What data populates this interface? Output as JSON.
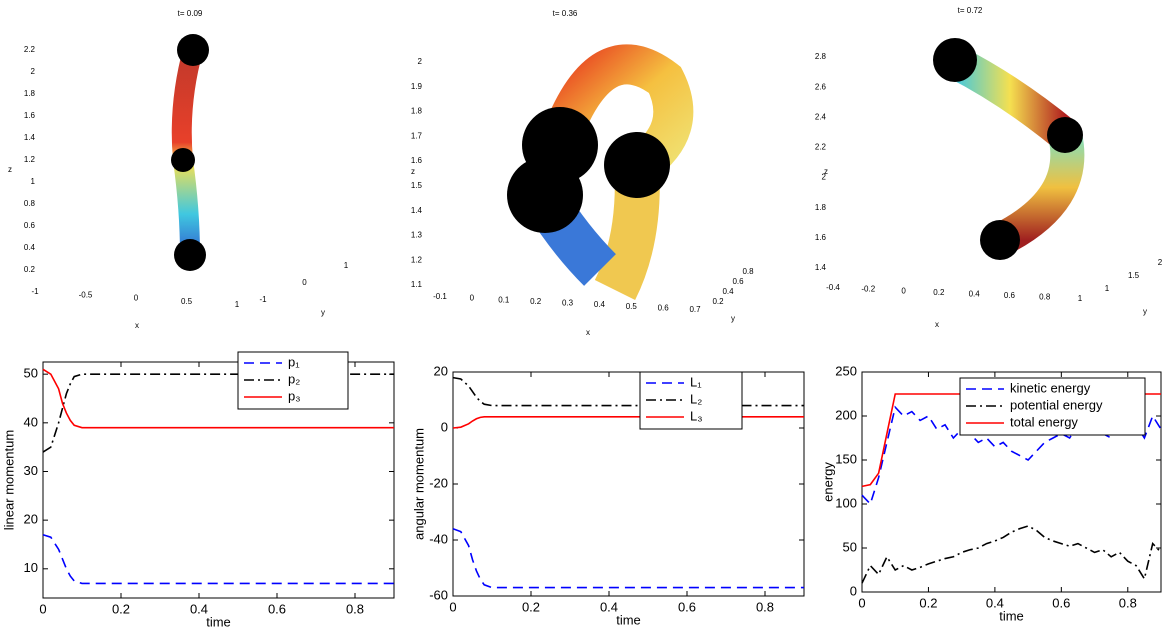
{
  "chart_data": [
    {
      "type": "surface3d",
      "title": "t= 0.09",
      "xlabel": "x",
      "ylabel": "y",
      "zlabel": "z",
      "xlim": [
        -1,
        1
      ],
      "xticks": [
        -1,
        -0.5,
        0,
        0.5,
        1
      ],
      "ylim": [
        -1,
        1
      ],
      "yticks": [
        -1,
        0,
        1
      ],
      "zlim": [
        0.2,
        2.2
      ],
      "zticks": [
        0.2,
        0.4,
        0.6,
        0.8,
        1,
        1.2,
        1.4,
        1.6,
        1.8,
        2,
        2.2
      ]
    },
    {
      "type": "surface3d",
      "title": "t= 0.36",
      "xlabel": "x",
      "ylabel": "y",
      "zlabel": "z",
      "xlim": [
        -0.1,
        0.7
      ],
      "xticks": [
        -0.1,
        0,
        0.1,
        0.2,
        0.3,
        0.4,
        0.5,
        0.6,
        0.7
      ],
      "ylim": [
        0.2,
        0.8
      ],
      "yticks": [
        0.2,
        0.4,
        0.6,
        0.8
      ],
      "zlim": [
        1.1,
        2
      ],
      "zticks": [
        1.1,
        1.2,
        1.3,
        1.4,
        1.5,
        1.6,
        1.7,
        1.8,
        1.9,
        2
      ]
    },
    {
      "type": "surface3d",
      "title": "t= 0.72",
      "xlabel": "x",
      "ylabel": "y",
      "zlabel": "z",
      "xlim": [
        -0.4,
        1
      ],
      "xticks": [
        -0.4,
        -0.2,
        0,
        0.2,
        0.4,
        0.6,
        0.8,
        1
      ],
      "ylim": [
        1,
        2
      ],
      "yticks": [
        1,
        1.5,
        2
      ],
      "zlim": [
        1.4,
        2.8
      ],
      "zticks": [
        1.4,
        1.6,
        1.8,
        2,
        2.2,
        2.4,
        2.6,
        2.8
      ]
    },
    {
      "type": "line",
      "xlabel": "time",
      "ylabel": "linear momentum",
      "legend": "upper right",
      "xlim": [
        0,
        0.9
      ],
      "xticks": [
        0,
        0.2,
        0.4,
        0.6,
        0.8
      ],
      "ylim": [
        4,
        52.5
      ],
      "yticks": [
        10,
        20,
        30,
        40,
        50
      ],
      "x": [
        0,
        0.02,
        0.04,
        0.05,
        0.06,
        0.07,
        0.08,
        0.1,
        0.2,
        0.4,
        0.6,
        0.8,
        0.9
      ],
      "series": [
        {
          "name": "p₁",
          "color": "#0000ff",
          "line_style": "dashed",
          "values": [
            17,
            16.5,
            14,
            12,
            10,
            8.5,
            7.5,
            7,
            7,
            7,
            7,
            7,
            7
          ]
        },
        {
          "name": "p₂",
          "color": "#000000",
          "line_style": "dashdot",
          "values": [
            34,
            35,
            40,
            43,
            46,
            48,
            49.5,
            50,
            50,
            50,
            50,
            50,
            50
          ]
        },
        {
          "name": "p₃",
          "color": "#ff0000",
          "line_style": "solid",
          "values": [
            51,
            50,
            47,
            44,
            42,
            40.5,
            39.5,
            39,
            39,
            39,
            39,
            39,
            39
          ]
        }
      ]
    },
    {
      "type": "line",
      "xlabel": "time",
      "ylabel": "angular momentum",
      "legend": "upper right",
      "xlim": [
        0,
        0.9
      ],
      "xticks": [
        0,
        0.2,
        0.4,
        0.6,
        0.8
      ],
      "ylim": [
        -60,
        20
      ],
      "yticks": [
        -60,
        -40,
        -20,
        0,
        20
      ],
      "x": [
        0,
        0.02,
        0.04,
        0.05,
        0.06,
        0.07,
        0.08,
        0.1,
        0.2,
        0.4,
        0.6,
        0.8,
        0.9
      ],
      "series": [
        {
          "name": "L₁",
          "color": "#0000ff",
          "line_style": "dashed",
          "values": [
            -36,
            -37,
            -42,
            -47,
            -51,
            -54,
            -56,
            -57,
            -57,
            -57,
            -57,
            -57,
            -57
          ]
        },
        {
          "name": "L₂",
          "color": "#000000",
          "line_style": "dashdot",
          "values": [
            18,
            17.5,
            15,
            13,
            11,
            9.5,
            8.5,
            8,
            8,
            8,
            8,
            8,
            8
          ]
        },
        {
          "name": "L₃",
          "color": "#ff0000",
          "line_style": "solid",
          "values": [
            0,
            0.3,
            1.5,
            2.5,
            3.3,
            3.8,
            4,
            4,
            4,
            4,
            4,
            4,
            4
          ]
        }
      ]
    },
    {
      "type": "line",
      "xlabel": "time",
      "ylabel": "energy",
      "legend": "upper right",
      "xlim": [
        0,
        0.9
      ],
      "xticks": [
        0,
        0.2,
        0.4,
        0.6,
        0.8
      ],
      "ylim": [
        0,
        250
      ],
      "yticks": [
        0,
        50,
        100,
        150,
        200,
        250
      ],
      "x": [
        0,
        0.025,
        0.05,
        0.075,
        0.1,
        0.125,
        0.15,
        0.175,
        0.2,
        0.225,
        0.25,
        0.275,
        0.3,
        0.325,
        0.35,
        0.375,
        0.4,
        0.425,
        0.45,
        0.475,
        0.5,
        0.525,
        0.55,
        0.575,
        0.6,
        0.625,
        0.65,
        0.675,
        0.7,
        0.725,
        0.75,
        0.775,
        0.8,
        0.825,
        0.85,
        0.875,
        0.9
      ],
      "series": [
        {
          "name": "kinetic energy",
          "color": "#0000ff",
          "line_style": "dashed",
          "values": [
            110,
            100,
            130,
            170,
            210,
            200,
            205,
            195,
            200,
            185,
            190,
            175,
            185,
            180,
            170,
            175,
            165,
            170,
            160,
            155,
            150,
            160,
            170,
            175,
            180,
            175,
            190,
            180,
            195,
            180,
            175,
            195,
            185,
            190,
            175,
            200,
            185
          ]
        },
        {
          "name": "potential energy",
          "color": "#000000",
          "line_style": "dashdot",
          "values": [
            10,
            30,
            20,
            40,
            25,
            30,
            25,
            28,
            32,
            35,
            38,
            40,
            45,
            48,
            50,
            55,
            58,
            62,
            68,
            72,
            75,
            70,
            62,
            58,
            55,
            52,
            55,
            50,
            45,
            48,
            40,
            45,
            35,
            30,
            15,
            55,
            45
          ]
        },
        {
          "name": "total energy",
          "color": "#ff0000",
          "line_style": "solid",
          "values": [
            120,
            122,
            135,
            180,
            225,
            225,
            225,
            225,
            225,
            225,
            225,
            225,
            225,
            225,
            225,
            225,
            225,
            225,
            225,
            225,
            225,
            225,
            225,
            225,
            225,
            225,
            225,
            225,
            225,
            225,
            225,
            225,
            225,
            225,
            225,
            225,
            225
          ]
        }
      ]
    }
  ]
}
